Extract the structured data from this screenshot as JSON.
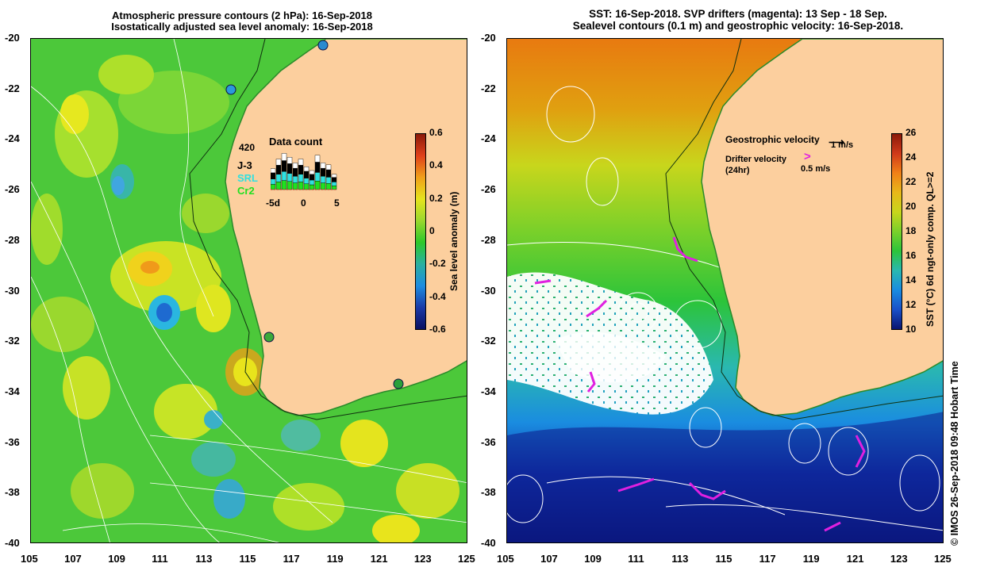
{
  "left_panel": {
    "title_line1": "Atmospheric pressure contours (2 hPa): 16-Sep-2018",
    "title_line2": "Isostatically adjusted sea level anomaly: 16-Sep-2018",
    "colorbar": {
      "label": "Sea level anomaly (m)",
      "ticks": [
        "0.6",
        "0.4",
        "0.2",
        "0",
        "-0.2",
        "-0.4",
        "-0.6"
      ]
    },
    "inset": {
      "title": "Data count",
      "max_label": "420",
      "legend": [
        "J-3",
        "SRL",
        "Cr2"
      ],
      "xticks": [
        "-5d",
        "0",
        "5"
      ],
      "bars": [
        0.55,
        0.8,
        0.95,
        0.85,
        0.7,
        0.8,
        0.6,
        0.5,
        0.9,
        0.7,
        0.65,
        0.4
      ]
    }
  },
  "right_panel": {
    "title_line1": "SST: 16-Sep-2018. SVP drifters (magenta): 13 Sep - 18 Sep.",
    "title_line2": "Sealevel contours (0.1 m) and geostrophic velocity: 16-Sep-2018.",
    "colorbar": {
      "label": "SST (°C) 6d ngt-only comp. QL>=2",
      "ticks": [
        "26",
        "24",
        "22",
        "20",
        "18",
        "16",
        "14",
        "12",
        "10"
      ]
    },
    "legend": {
      "geo_label": "Geostrophic velocity",
      "geo_scale": "1 m/s",
      "drifter_label_line1": "Drifter velocity",
      "drifter_label_line2": "(24hr)",
      "drifter_scale": "0.5 m/s"
    }
  },
  "axes": {
    "lat_ticks": [
      "-20",
      "-22",
      "-24",
      "-26",
      "-28",
      "-30",
      "-32",
      "-34",
      "-36",
      "-38",
      "-40"
    ],
    "lon_ticks": [
      "105",
      "107",
      "109",
      "111",
      "113",
      "115",
      "117",
      "119",
      "121",
      "123",
      "125"
    ]
  },
  "credit": "© IMOS 26-Sep-2018 09:48 Hobart Time"
}
